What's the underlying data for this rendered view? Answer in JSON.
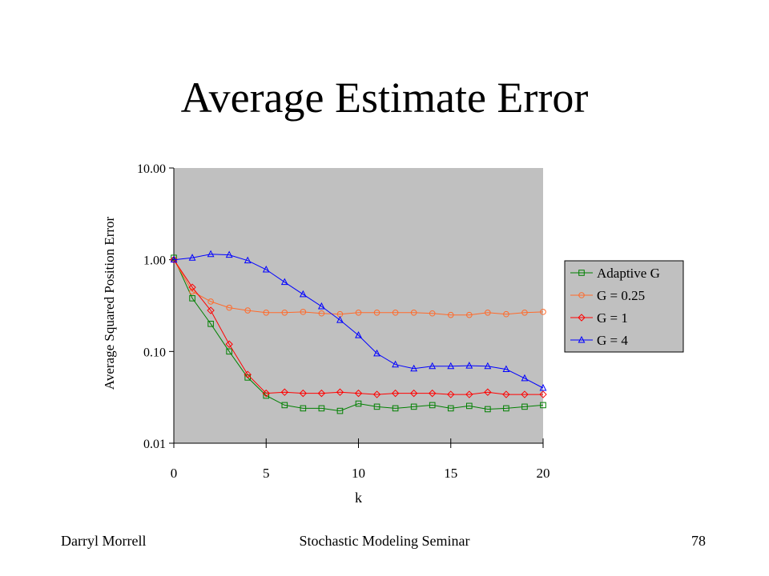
{
  "slide": {
    "title": "Average Estimate Error",
    "footer_left": "Darryl Morrell",
    "footer_center": "Stochastic Modeling Seminar",
    "page_number": "78"
  },
  "chart_data": {
    "type": "line",
    "title": "",
    "xlabel": "k",
    "ylabel": "Average Squared Position Error",
    "y_scale": "log",
    "xlim": [
      0,
      20
    ],
    "ylim": [
      0.01,
      10
    ],
    "x_ticks": [
      "0",
      "5",
      "10",
      "15",
      "20"
    ],
    "y_ticks": [
      "10.00",
      "1.00",
      "0.10",
      "0.01"
    ],
    "grid": false,
    "plot_background": "#c0c0c0",
    "legend_position": "right",
    "x": [
      0,
      1,
      2,
      3,
      4,
      5,
      6,
      7,
      8,
      9,
      10,
      11,
      12,
      13,
      14,
      15,
      16,
      17,
      18,
      19,
      20
    ],
    "series": [
      {
        "name": "Adaptive G",
        "color": "#008000",
        "marker": "square",
        "values": [
          1.05,
          0.38,
          0.2,
          0.1,
          0.052,
          0.033,
          0.026,
          0.024,
          0.024,
          0.0225,
          0.027,
          0.025,
          0.024,
          0.025,
          0.026,
          0.024,
          0.0255,
          0.0235,
          0.024,
          0.025,
          0.026
        ]
      },
      {
        "name": "G = 0.25",
        "color": "#ff6a2a",
        "marker": "circle",
        "values": [
          1.0,
          0.45,
          0.35,
          0.3,
          0.28,
          0.265,
          0.265,
          0.27,
          0.26,
          0.255,
          0.265,
          0.265,
          0.265,
          0.265,
          0.26,
          0.25,
          0.25,
          0.265,
          0.255,
          0.265,
          0.27
        ]
      },
      {
        "name": "G = 1",
        "color": "#ff0000",
        "marker": "diamond",
        "values": [
          1.0,
          0.5,
          0.28,
          0.12,
          0.056,
          0.035,
          0.036,
          0.035,
          0.035,
          0.036,
          0.035,
          0.034,
          0.035,
          0.035,
          0.035,
          0.034,
          0.034,
          0.036,
          0.034,
          0.034,
          0.034
        ]
      },
      {
        "name": "G = 4",
        "color": "#0000ff",
        "marker": "triangle",
        "values": [
          1.0,
          1.05,
          1.15,
          1.13,
          0.98,
          0.78,
          0.57,
          0.42,
          0.31,
          0.22,
          0.15,
          0.095,
          0.072,
          0.065,
          0.069,
          0.069,
          0.07,
          0.069,
          0.064,
          0.051,
          0.04
        ]
      }
    ]
  }
}
